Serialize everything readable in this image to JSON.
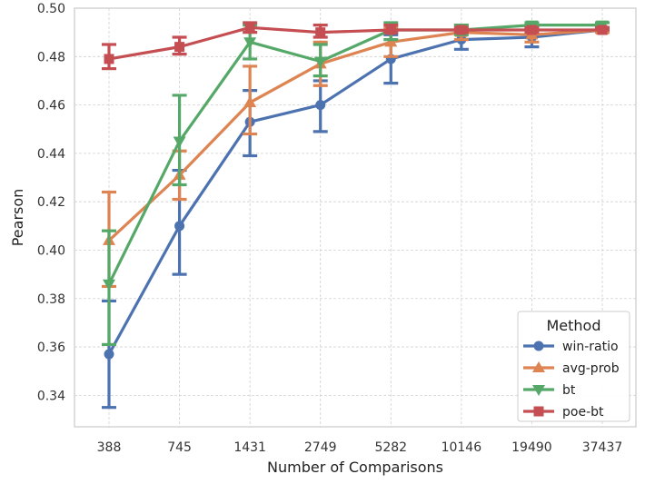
{
  "chart_data": {
    "type": "line",
    "xlabel": "Number of Comparisons",
    "ylabel": "Pearson",
    "categories": [
      "388",
      "745",
      "1431",
      "2749",
      "5282",
      "10146",
      "19490",
      "37437"
    ],
    "ylim": [
      0.327,
      0.5
    ],
    "yticks": [
      0.34,
      0.36,
      0.38,
      0.4,
      0.42,
      0.44,
      0.46,
      0.48,
      0.5
    ],
    "ytick_labels": [
      "0.34",
      "0.36",
      "0.38",
      "0.40",
      "0.42",
      "0.44",
      "0.46",
      "0.48",
      "0.50"
    ],
    "grid": true,
    "legend": {
      "title": "Method",
      "placement": "bottom-right"
    },
    "series": [
      {
        "name": "win-ratio",
        "color": "#4c72b0",
        "marker": "circle",
        "values": [
          0.357,
          0.41,
          0.453,
          0.46,
          0.479,
          0.487,
          0.488,
          0.491
        ],
        "err_low": [
          0.335,
          0.39,
          0.439,
          0.449,
          0.469,
          0.483,
          0.484,
          0.491
        ],
        "err_high": [
          0.379,
          0.433,
          0.466,
          0.47,
          0.489,
          0.491,
          0.492,
          0.492
        ]
      },
      {
        "name": "avg-prob",
        "color": "#dd8452",
        "marker": "triangle-up",
        "values": [
          0.404,
          0.431,
          0.461,
          0.477,
          0.486,
          0.49,
          0.489,
          0.491
        ],
        "err_low": [
          0.385,
          0.421,
          0.448,
          0.468,
          0.48,
          0.487,
          0.486,
          0.49
        ],
        "err_high": [
          0.424,
          0.441,
          0.476,
          0.486,
          0.492,
          0.493,
          0.492,
          0.492
        ]
      },
      {
        "name": "bt",
        "color": "#55a868",
        "marker": "triangle-down",
        "values": [
          0.386,
          0.445,
          0.486,
          0.478,
          0.491,
          0.491,
          0.493,
          0.493
        ],
        "err_low": [
          0.361,
          0.427,
          0.479,
          0.472,
          0.487,
          0.489,
          0.491,
          0.492
        ],
        "err_high": [
          0.408,
          0.464,
          0.493,
          0.485,
          0.494,
          0.493,
          0.494,
          0.494
        ]
      },
      {
        "name": "poe-bt",
        "color": "#c44e52",
        "marker": "square",
        "values": [
          0.479,
          0.484,
          0.492,
          0.49,
          0.491,
          0.491,
          0.491,
          0.491
        ],
        "err_low": [
          0.475,
          0.481,
          0.49,
          0.488,
          0.49,
          0.49,
          0.49,
          0.491
        ],
        "err_high": [
          0.485,
          0.488,
          0.494,
          0.493,
          0.493,
          0.492,
          0.492,
          0.492
        ]
      }
    ]
  }
}
